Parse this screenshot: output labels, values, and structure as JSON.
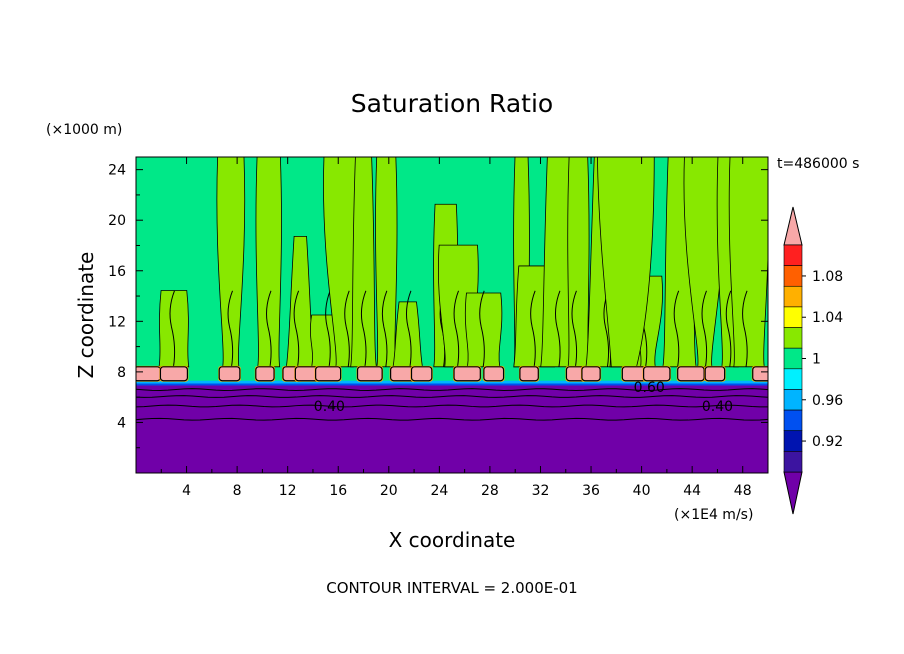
{
  "chart_data": {
    "type": "heatmap",
    "title": "Saturation Ratio",
    "xlabel": "X coordinate",
    "ylabel": "Z coordinate",
    "x_unit": "(×1E4 m/s)",
    "y_unit": "(×1000 m)",
    "time_label": "t=486000 s",
    "footer": "CONTOUR INTERVAL = 2.000E-01",
    "xlim": [
      0,
      50
    ],
    "ylim": [
      0,
      25
    ],
    "x_ticks": [
      "4",
      "8",
      "12",
      "16",
      "20",
      "24",
      "28",
      "32",
      "36",
      "40",
      "44",
      "48"
    ],
    "y_ticks": [
      "4",
      "8",
      "12",
      "16",
      "20",
      "24"
    ],
    "contour_labels": [
      {
        "text": "0.40",
        "x": 15.3,
        "y": 5.3
      },
      {
        "text": "0.60",
        "x": 40.6,
        "y": 6.8
      },
      {
        "text": "0.40",
        "x": 46.0,
        "y": 5.3
      }
    ],
    "colorbar": {
      "tick_labels": [
        "0.92",
        "0.96",
        "1",
        "1.04",
        "1.08"
      ],
      "levels": [
        0.9,
        0.92,
        0.94,
        0.96,
        0.98,
        1.0,
        1.02,
        1.04,
        1.06,
        1.08,
        1.1
      ],
      "colors": [
        "#7000a8",
        "#3c14a0",
        "#0014b0",
        "#0050f0",
        "#00b4ff",
        "#00f0ff",
        "#00e888",
        "#88e800",
        "#ffff00",
        "#ffb000",
        "#ff6000",
        "#ff2020",
        "#f8a8a8"
      ],
      "extend": "both"
    },
    "regions": {
      "dry_layer_top": 7.0,
      "cloud_base": 7.3,
      "cloud_top": 8.4,
      "cloud_cell_centers": [
        0.9,
        3.0,
        7.4,
        10.2,
        12.4,
        13.6,
        15.2,
        18.5,
        21.2,
        22.6,
        26.2,
        28.3,
        31.1,
        34.8,
        36.0,
        39.4,
        41.2,
        43.9,
        45.8,
        49.7
      ],
      "supersaturated_plume_centers": [
        3.0,
        7.5,
        10.5,
        13.0,
        15.0,
        16.5,
        18.0,
        19.8,
        21.5,
        24.5,
        25.5,
        27.5,
        30.5,
        31.5,
        33.5,
        35.0,
        37.0,
        39.0,
        40.5,
        43.0,
        45.0,
        47.0,
        48.5
      ]
    }
  }
}
